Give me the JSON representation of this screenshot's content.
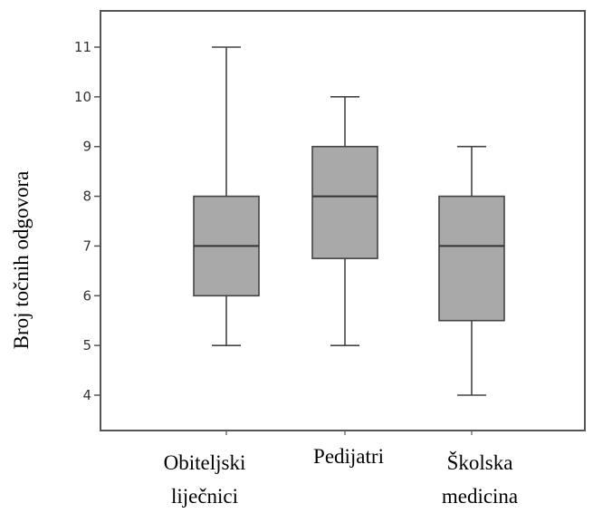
{
  "chart_data": {
    "type": "boxplot",
    "title": "",
    "xlabel": "",
    "ylabel": "Broj točnih odgovora",
    "ylim": [
      3.3,
      11.8
    ],
    "yticks": [
      4,
      5,
      6,
      7,
      8,
      9,
      10,
      11
    ],
    "grid": false,
    "categories": [
      [
        "Obiteljski",
        "liječnici"
      ],
      [
        "Pedijatri"
      ],
      [
        "Školska",
        "medicina"
      ]
    ],
    "boxes": [
      {
        "whisker_low": 5,
        "q1": 6,
        "median": 7,
        "q3": 8,
        "whisker_high": 11
      },
      {
        "whisker_low": 5,
        "q1": 6.75,
        "median": 8,
        "q3": 9,
        "whisker_high": 10
      },
      {
        "whisker_low": 4,
        "q1": 5.5,
        "median": 7,
        "q3": 8,
        "whisker_high": 9
      }
    ],
    "colors": {
      "box_fill": "#a9a9a9",
      "box_stroke": "#444444",
      "frame": "#555555"
    }
  }
}
